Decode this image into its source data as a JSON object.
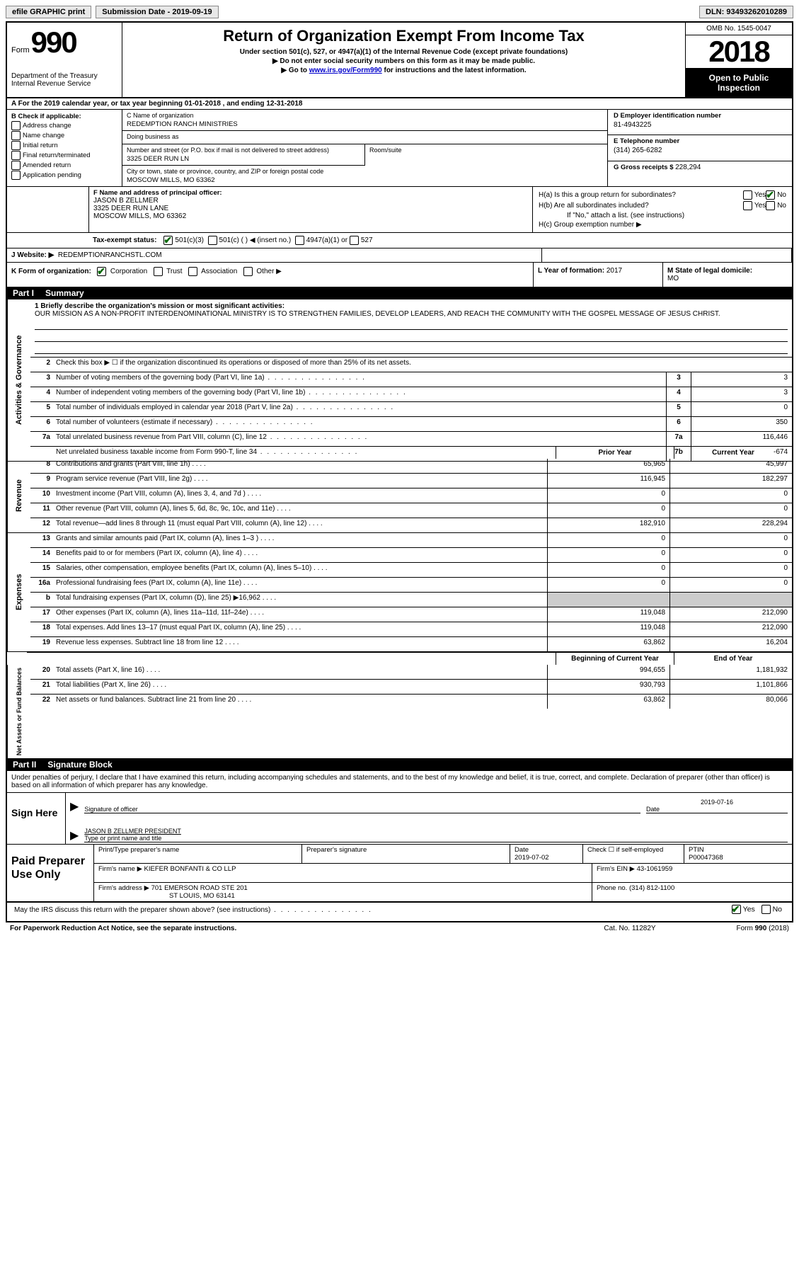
{
  "topbar": {
    "efile": "efile GRAPHIC print",
    "sub_label": "Submission Date - ",
    "sub_date": "2019-09-19",
    "dln_label": "DLN: ",
    "dln": "93493262010289"
  },
  "header": {
    "form_word": "Form",
    "form_num": "990",
    "dept": "Department of the Treasury\nInternal Revenue Service",
    "title": "Return of Organization Exempt From Income Tax",
    "sub1": "Under section 501(c), 527, or 4947(a)(1) of the Internal Revenue Code (except private foundations)",
    "sub2": "▶ Do not enter social security numbers on this form as it may be made public.",
    "sub3_pre": "▶ Go to ",
    "sub3_link": "www.irs.gov/Form990",
    "sub3_post": " for instructions and the latest information.",
    "omb": "OMB No. 1545-0047",
    "year": "2018",
    "open": "Open to Public Inspection"
  },
  "period": "A For the 2019 calendar year, or tax year beginning 01-01-2018    , and ending 12-31-2018",
  "B": {
    "title": "B Check if applicable:",
    "items": [
      "Address change",
      "Name change",
      "Initial return",
      "Final return/terminated",
      "Amended return",
      "Application pending"
    ]
  },
  "C": {
    "name_lbl": "C Name of organization",
    "name": "REDEMPTION RANCH MINISTRIES",
    "dba_lbl": "Doing business as",
    "dba": "",
    "addr_lbl": "Number and street (or P.O. box if mail is not delivered to street address)",
    "addr": "3325 DEER RUN LN",
    "room_lbl": "Room/suite",
    "city_lbl": "City or town, state or province, country, and ZIP or foreign postal code",
    "city": "MOSCOW MILLS, MO  63362"
  },
  "D": {
    "ein_lbl": "D Employer identification number",
    "ein": "81-4943225",
    "tel_lbl": "E Telephone number",
    "tel": "(314) 265-6282",
    "gross_lbl": "G Gross receipts $ ",
    "gross": "228,294"
  },
  "F": {
    "lbl": "F  Name and address of principal officer:",
    "name": "JASON B ZELLMER",
    "addr1": "3325 DEER RUN LANE",
    "addr2": "MOSCOW MILLS, MO  63362"
  },
  "H": {
    "a": "H(a)  Is this a group return for subordinates?",
    "b": "H(b)  Are all subordinates included?",
    "note": "If \"No,\" attach a list. (see instructions)",
    "c": "H(c)  Group exemption number ▶"
  },
  "I": {
    "lbl": "Tax-exempt status:",
    "opts": [
      "501(c)(3)",
      "501(c) (  ) ◀ (insert no.)",
      "4947(a)(1) or",
      "527"
    ]
  },
  "J": {
    "lbl": "J   Website: ▶",
    "val": "REDEMPTIONRANCHSTL.COM"
  },
  "K": {
    "lbl": "K Form of organization:",
    "opts": [
      "Corporation",
      "Trust",
      "Association",
      "Other ▶"
    ]
  },
  "L": {
    "lbl": "L Year of formation: ",
    "val": "2017"
  },
  "M": {
    "lbl": "M State of legal domicile:",
    "val": "MO"
  },
  "parts": {
    "p1": {
      "num": "Part I",
      "title": "Summary"
    },
    "p2": {
      "num": "Part II",
      "title": "Signature Block"
    }
  },
  "summary": {
    "q1_lbl": "1   Briefly describe the organization's mission or most significant activities:",
    "q1": "OUR MISSION AS A NON-PROFIT INTERDENOMINATIONAL MINISTRY IS TO STRENGTHEN FAMILIES, DEVELOP LEADERS, AND REACH THE COMMUNITY WITH THE GOSPEL MESSAGE OF JESUS CHRIST.",
    "q2": "Check this box ▶ ☐  if the organization discontinued its operations or disposed of more than 25% of its net assets.",
    "prior_hdr": "Prior Year",
    "curr_hdr": "Current Year",
    "boy_hdr": "Beginning of Current Year",
    "eoy_hdr": "End of Year",
    "gov_rows": [
      {
        "n": "3",
        "d": "Number of voting members of the governing body (Part VI, line 1a)",
        "box": "3",
        "v": "3"
      },
      {
        "n": "4",
        "d": "Number of independent voting members of the governing body (Part VI, line 1b)",
        "box": "4",
        "v": "3"
      },
      {
        "n": "5",
        "d": "Total number of individuals employed in calendar year 2018 (Part V, line 2a)",
        "box": "5",
        "v": "0"
      },
      {
        "n": "6",
        "d": "Total number of volunteers (estimate if necessary)",
        "box": "6",
        "v": "350"
      },
      {
        "n": "7a",
        "d": "Total unrelated business revenue from Part VIII, column (C), line 12",
        "box": "7a",
        "v": "116,446"
      },
      {
        "n": "",
        "d": "Net unrelated business taxable income from Form 990-T, line 34",
        "box": "7b",
        "v": "-674"
      }
    ],
    "rev_rows": [
      {
        "n": "8",
        "d": "Contributions and grants (Part VIII, line 1h)",
        "py": "65,965",
        "cy": "45,997"
      },
      {
        "n": "9",
        "d": "Program service revenue (Part VIII, line 2g)",
        "py": "116,945",
        "cy": "182,297"
      },
      {
        "n": "10",
        "d": "Investment income (Part VIII, column (A), lines 3, 4, and 7d )",
        "py": "0",
        "cy": "0"
      },
      {
        "n": "11",
        "d": "Other revenue (Part VIII, column (A), lines 5, 6d, 8c, 9c, 10c, and 11e)",
        "py": "0",
        "cy": "0"
      },
      {
        "n": "12",
        "d": "Total revenue—add lines 8 through 11 (must equal Part VIII, column (A), line 12)",
        "py": "182,910",
        "cy": "228,294"
      }
    ],
    "exp_rows": [
      {
        "n": "13",
        "d": "Grants and similar amounts paid (Part IX, column (A), lines 1–3 )",
        "py": "0",
        "cy": "0"
      },
      {
        "n": "14",
        "d": "Benefits paid to or for members (Part IX, column (A), line 4)",
        "py": "0",
        "cy": "0"
      },
      {
        "n": "15",
        "d": "Salaries, other compensation, employee benefits (Part IX, column (A), lines 5–10)",
        "py": "0",
        "cy": "0"
      },
      {
        "n": "16a",
        "d": "Professional fundraising fees (Part IX, column (A), line 11e)",
        "py": "0",
        "cy": "0"
      },
      {
        "n": "b",
        "d": "Total fundraising expenses (Part IX, column (D), line 25) ▶16,962",
        "py": "",
        "cy": "",
        "grey": true
      },
      {
        "n": "17",
        "d": "Other expenses (Part IX, column (A), lines 11a–11d, 11f–24e)",
        "py": "119,048",
        "cy": "212,090"
      },
      {
        "n": "18",
        "d": "Total expenses. Add lines 13–17 (must equal Part IX, column (A), line 25)",
        "py": "119,048",
        "cy": "212,090"
      },
      {
        "n": "19",
        "d": "Revenue less expenses. Subtract line 18 from line 12",
        "py": "63,862",
        "cy": "16,204"
      }
    ],
    "net_rows": [
      {
        "n": "20",
        "d": "Total assets (Part X, line 16)",
        "py": "994,655",
        "cy": "1,181,932"
      },
      {
        "n": "21",
        "d": "Total liabilities (Part X, line 26)",
        "py": "930,793",
        "cy": "1,101,866"
      },
      {
        "n": "22",
        "d": "Net assets or fund balances. Subtract line 21 from line 20",
        "py": "63,862",
        "cy": "80,066"
      }
    ]
  },
  "vtabs": {
    "gov": "Activities & Governance",
    "rev": "Revenue",
    "exp": "Expenses",
    "net": "Net Assets or Fund Balances"
  },
  "sig": {
    "penalty": "Under penalties of perjury, I declare that I have examined this return, including accompanying schedules and statements, and to the best of my knowledge and belief, it is true, correct, and complete. Declaration of preparer (other than officer) is based on all information of which preparer has any knowledge.",
    "sign_here": "Sign Here",
    "sig_officer": "Signature of officer",
    "date_lbl": "Date",
    "date": "2019-07-16",
    "name_title": "JASON B ZELLMER  PRESIDENT",
    "type_lbl": "Type or print name and title"
  },
  "paid": {
    "lbl": "Paid Preparer Use Only",
    "r1": {
      "c1": "Print/Type preparer's name",
      "c2": "Preparer's signature",
      "c3_lbl": "Date",
      "c3": "2019-07-02",
      "c4": "Check ☐ if self-employed",
      "c5_lbl": "PTIN",
      "c5": "P00047368"
    },
    "r2": {
      "c1_lbl": "Firm's name      ▶",
      "c1": "KIEFER BONFANTI & CO LLP",
      "c2_lbl": "Firm's EIN ▶",
      "c2": "43-1061959"
    },
    "r3": {
      "c1_lbl": "Firm's address  ▶",
      "c1a": "701 EMERSON ROAD STE 201",
      "c1b": "ST LOUIS, MO  63141",
      "c2_lbl": "Phone no. ",
      "c2": "(314) 812-1100"
    },
    "discuss": "May the IRS discuss this return with the preparer shown above? (see instructions)"
  },
  "footer": {
    "f1": "For Paperwork Reduction Act Notice, see the separate instructions.",
    "f2": "Cat. No. 11282Y",
    "f3": "Form 990 (2018)"
  }
}
